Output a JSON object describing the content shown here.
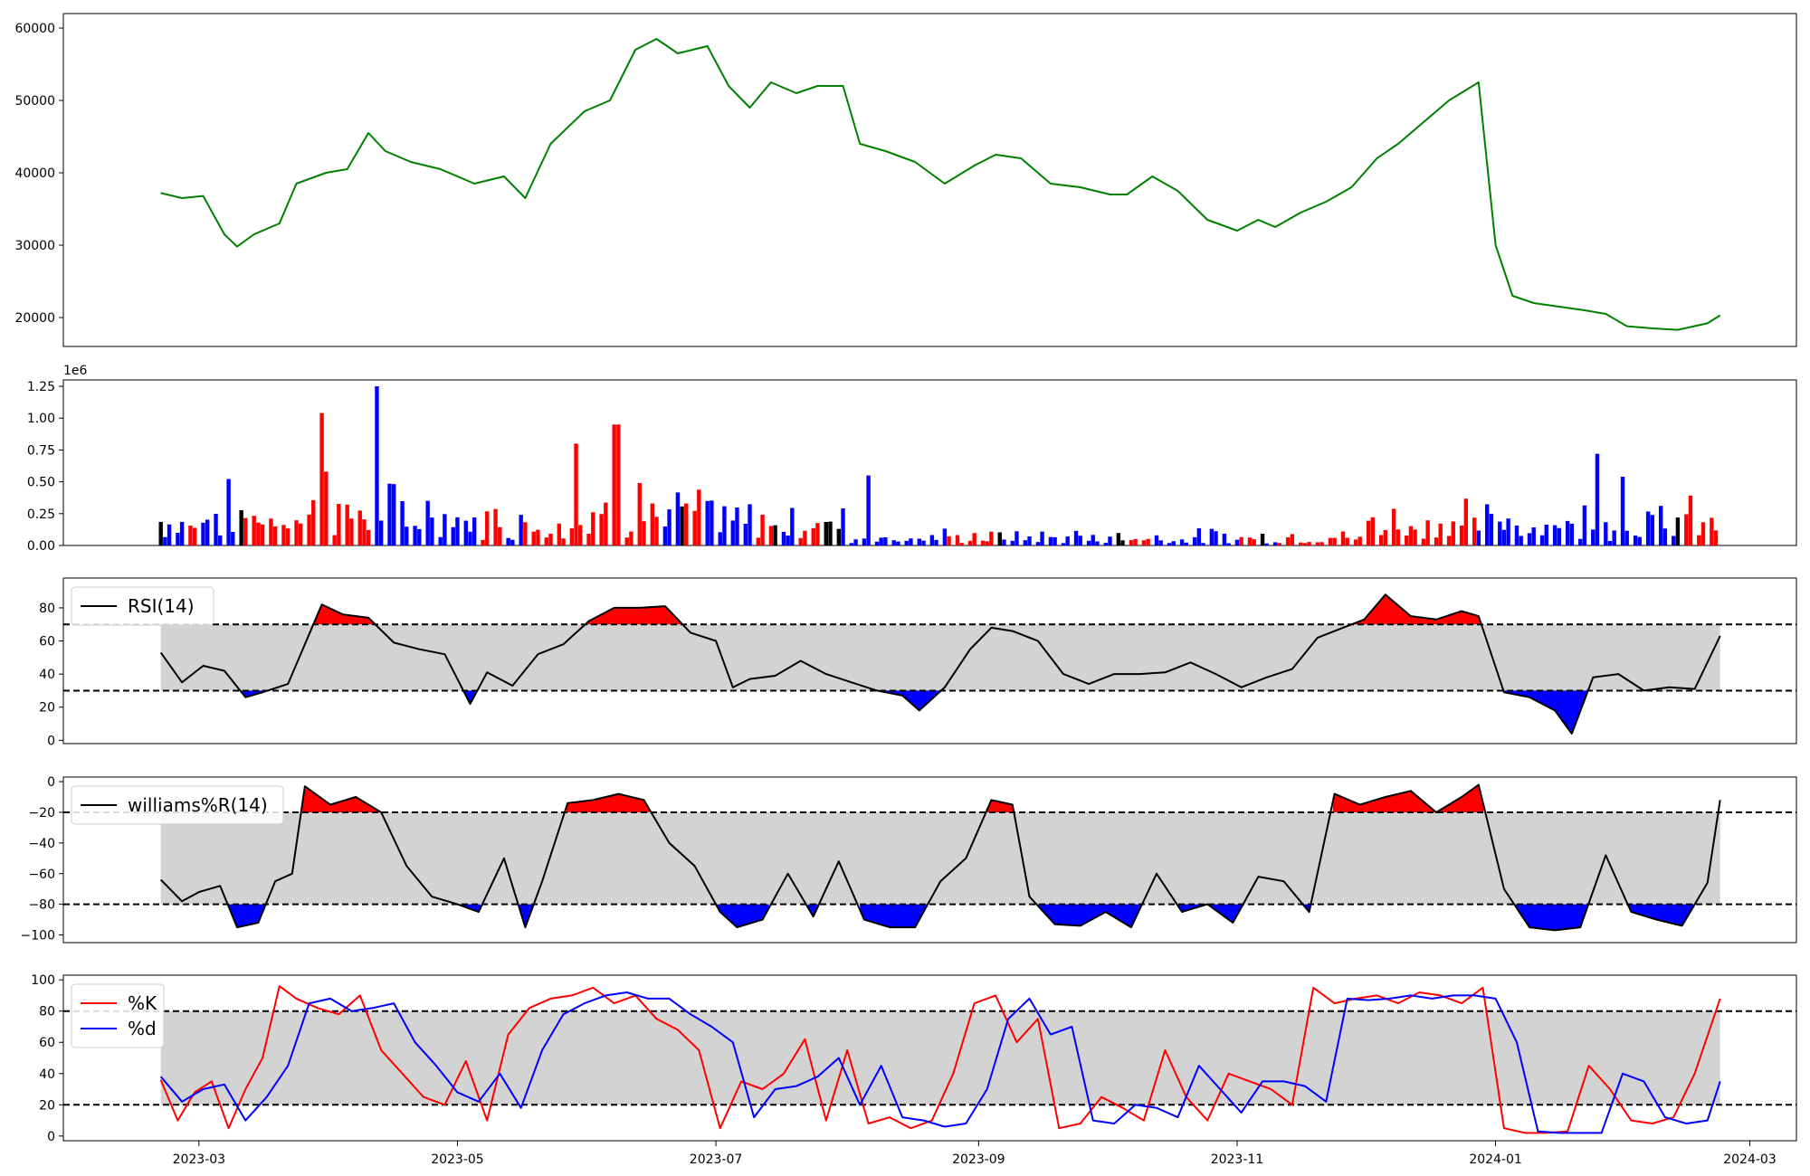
{
  "chart_data": [
    {
      "type": "line",
      "panel": "price",
      "ylim": [
        16000,
        62000
      ],
      "y_ticks": [
        20000,
        30000,
        40000,
        50000,
        60000
      ],
      "colors": {
        "line": "#008000"
      },
      "series": [
        {
          "x": [
            "2023-02-20",
            "2023-02-25",
            "2023-03-02",
            "2023-03-07",
            "2023-03-10",
            "2023-03-14",
            "2023-03-20",
            "2023-03-24",
            "2023-03-31",
            "2023-04-05",
            "2023-04-10",
            "2023-04-14",
            "2023-04-20",
            "2023-04-27",
            "2023-05-05",
            "2023-05-12",
            "2023-05-17",
            "2023-05-23",
            "2023-05-31",
            "2023-06-06",
            "2023-06-12",
            "2023-06-17",
            "2023-06-22",
            "2023-06-29",
            "2023-07-04",
            "2023-07-09",
            "2023-07-14",
            "2023-07-20",
            "2023-07-25",
            "2023-07-31",
            "2023-08-04",
            "2023-08-10",
            "2023-08-17",
            "2023-08-24",
            "2023-08-31",
            "2023-09-05",
            "2023-09-11",
            "2023-09-18",
            "2023-09-25",
            "2023-10-02",
            "2023-10-06",
            "2023-10-12",
            "2023-10-18",
            "2023-10-25",
            "2023-11-01",
            "2023-11-06",
            "2023-11-10",
            "2023-11-16",
            "2023-11-22",
            "2023-11-28",
            "2023-12-04",
            "2023-12-09",
            "2023-12-15",
            "2023-12-21",
            "2023-12-28",
            "2024-01-01",
            "2024-01-05",
            "2024-01-10",
            "2024-01-16",
            "2024-01-22",
            "2024-01-27",
            "2024-02-01",
            "2024-02-07",
            "2024-02-13",
            "2024-02-20",
            "2024-02-23"
          ],
          "values": [
            37200,
            36500,
            36800,
            31500,
            29800,
            31500,
            33000,
            38500,
            40000,
            40500,
            45500,
            43000,
            41500,
            40500,
            38500,
            39500,
            36500,
            44000,
            48500,
            50000,
            57000,
            58500,
            56500,
            57500,
            52000,
            49000,
            52500,
            51000,
            52000,
            52000,
            44000,
            43000,
            41500,
            38500,
            41000,
            42500,
            42000,
            38500,
            38000,
            37000,
            37000,
            39500,
            37500,
            33500,
            32000,
            33500,
            32500,
            34500,
            36000,
            38000,
            42000,
            44000,
            47000,
            50000,
            52500,
            30000,
            23000,
            22000,
            21500,
            21000,
            20500,
            18800,
            18500,
            18300,
            19200,
            20300
          ]
        }
      ]
    },
    {
      "type": "bar",
      "panel": "volume",
      "ylim": [
        0,
        1300000
      ],
      "y_ticks": [
        0,
        250000,
        500000,
        750000,
        1000000,
        1250000
      ],
      "y_tick_labels": [
        "0.00",
        "0.25",
        "0.50",
        "0.75",
        "1.00",
        "1.25"
      ],
      "offset_label": "1e6",
      "colors": {
        "up": "#ff0000",
        "down": "#0000ff",
        "flat": "#000000"
      },
      "bars_description": "daily volume, colored by price direction"
    },
    {
      "type": "line",
      "panel": "rsi",
      "legend": [
        "RSI(14)"
      ],
      "ylim": [
        -2,
        98
      ],
      "y_ticks": [
        0,
        20,
        40,
        60,
        80
      ],
      "thresholds": [
        30,
        70
      ],
      "colors": {
        "line": "#000000",
        "over": "#ff0000",
        "under": "#0000ff",
        "band": "#d3d3d3"
      },
      "series": [
        {
          "name": "RSI(14)",
          "x": [
            "2023-02-20",
            "2023-02-25",
            "2023-03-02",
            "2023-03-07",
            "2023-03-12",
            "2023-03-16",
            "2023-03-22",
            "2023-03-26",
            "2023-03-30",
            "2023-04-04",
            "2023-04-10",
            "2023-04-16",
            "2023-04-22",
            "2023-04-28",
            "2023-05-04",
            "2023-05-08",
            "2023-05-14",
            "2023-05-20",
            "2023-05-26",
            "2023-06-01",
            "2023-06-07",
            "2023-06-13",
            "2023-06-19",
            "2023-06-25",
            "2023-07-01",
            "2023-07-05",
            "2023-07-09",
            "2023-07-15",
            "2023-07-21",
            "2023-07-27",
            "2023-08-02",
            "2023-08-08",
            "2023-08-14",
            "2023-08-18",
            "2023-08-24",
            "2023-08-30",
            "2023-09-04",
            "2023-09-09",
            "2023-09-15",
            "2023-09-21",
            "2023-09-27",
            "2023-10-03",
            "2023-10-09",
            "2023-10-15",
            "2023-10-21",
            "2023-10-27",
            "2023-11-02",
            "2023-11-08",
            "2023-11-14",
            "2023-11-20",
            "2023-11-26",
            "2023-12-01",
            "2023-12-06",
            "2023-12-12",
            "2023-12-18",
            "2023-12-24",
            "2023-12-28",
            "2024-01-03",
            "2024-01-09",
            "2024-01-15",
            "2024-01-19",
            "2024-01-24",
            "2024-01-30",
            "2024-02-05",
            "2024-02-11",
            "2024-02-17",
            "2024-02-23"
          ],
          "values": [
            53,
            35,
            45,
            42,
            26,
            29,
            34,
            58,
            82,
            76,
            74,
            59,
            55,
            52,
            22,
            41,
            33,
            52,
            58,
            72,
            80,
            80,
            81,
            65,
            60,
            32,
            37,
            39,
            48,
            40,
            35,
            30,
            27,
            18,
            32,
            55,
            68,
            66,
            60,
            40,
            34,
            40,
            40,
            41,
            47,
            40,
            32,
            38,
            43,
            62,
            68,
            73,
            88,
            75,
            73,
            78,
            75,
            29,
            26,
            18,
            4,
            38,
            40,
            30,
            32,
            31,
            63
          ]
        }
      ]
    },
    {
      "type": "line",
      "panel": "williams",
      "legend": [
        "williams%R(14)"
      ],
      "ylim": [
        -105,
        3
      ],
      "y_ticks": [
        -100,
        -80,
        -60,
        -40,
        -20,
        0
      ],
      "y_tick_labels": [
        "−100",
        "−80",
        "−60",
        "−40",
        "−20",
        "0"
      ],
      "thresholds": [
        -80,
        -20
      ],
      "colors": {
        "line": "#000000",
        "over": "#ff0000",
        "under": "#0000ff",
        "band": "#d3d3d3"
      },
      "series": [
        {
          "name": "williams%R(14)",
          "x": [
            "2023-02-20",
            "2023-02-25",
            "2023-03-01",
            "2023-03-06",
            "2023-03-10",
            "2023-03-15",
            "2023-03-19",
            "2023-03-23",
            "2023-03-26",
            "2023-04-01",
            "2023-04-07",
            "2023-04-13",
            "2023-04-19",
            "2023-04-25",
            "2023-05-01",
            "2023-05-06",
            "2023-05-12",
            "2023-05-17",
            "2023-05-21",
            "2023-05-27",
            "2023-06-02",
            "2023-06-08",
            "2023-06-14",
            "2023-06-20",
            "2023-06-26",
            "2023-07-02",
            "2023-07-06",
            "2023-07-12",
            "2023-07-18",
            "2023-07-24",
            "2023-07-30",
            "2023-08-05",
            "2023-08-11",
            "2023-08-17",
            "2023-08-23",
            "2023-08-29",
            "2023-09-04",
            "2023-09-09",
            "2023-09-13",
            "2023-09-19",
            "2023-09-25",
            "2023-10-01",
            "2023-10-07",
            "2023-10-13",
            "2023-10-19",
            "2023-10-25",
            "2023-10-31",
            "2023-11-06",
            "2023-11-12",
            "2023-11-18",
            "2023-11-24",
            "2023-11-30",
            "2023-12-06",
            "2023-12-12",
            "2023-12-18",
            "2023-12-24",
            "2023-12-28",
            "2024-01-03",
            "2024-01-09",
            "2024-01-15",
            "2024-01-21",
            "2024-01-27",
            "2024-02-02",
            "2024-02-08",
            "2024-02-14",
            "2024-02-20",
            "2024-02-23"
          ],
          "values": [
            -64,
            -78,
            -72,
            -68,
            -95,
            -92,
            -65,
            -60,
            -3,
            -15,
            -10,
            -20,
            -55,
            -75,
            -80,
            -85,
            -50,
            -95,
            -65,
            -14,
            -12,
            -8,
            -12,
            -40,
            -55,
            -85,
            -95,
            -90,
            -60,
            -88,
            -52,
            -90,
            -95,
            -95,
            -65,
            -50,
            -12,
            -15,
            -75,
            -93,
            -94,
            -85,
            -95,
            -60,
            -85,
            -80,
            -92,
            -62,
            -65,
            -85,
            -8,
            -15,
            -10,
            -6,
            -20,
            -10,
            -2,
            -70,
            -95,
            -97,
            -95,
            -48,
            -85,
            -90,
            -94,
            -66,
            -12
          ]
        }
      ]
    },
    {
      "type": "line",
      "panel": "stochastic",
      "legend": [
        "%K",
        "%d"
      ],
      "ylim": [
        -3,
        103
      ],
      "y_ticks": [
        0,
        20,
        40,
        60,
        80,
        100
      ],
      "thresholds": [
        20,
        80
      ],
      "colors": {
        "%K": "#ff0000",
        "%d": "#0000ff",
        "band": "#d3d3d3"
      },
      "series": [
        {
          "name": "%K",
          "x": [
            "2023-02-20",
            "2023-02-24",
            "2023-02-28",
            "2023-03-04",
            "2023-03-08",
            "2023-03-12",
            "2023-03-16",
            "2023-03-20",
            "2023-03-24",
            "2023-03-29",
            "2023-04-03",
            "2023-04-08",
            "2023-04-13",
            "2023-04-18",
            "2023-04-23",
            "2023-04-28",
            "2023-05-03",
            "2023-05-08",
            "2023-05-13",
            "2023-05-18",
            "2023-05-23",
            "2023-05-28",
            "2023-06-02",
            "2023-06-07",
            "2023-06-12",
            "2023-06-17",
            "2023-06-22",
            "2023-06-27",
            "2023-07-02",
            "2023-07-07",
            "2023-07-12",
            "2023-07-17",
            "2023-07-22",
            "2023-07-27",
            "2023-08-01",
            "2023-08-06",
            "2023-08-11",
            "2023-08-16",
            "2023-08-21",
            "2023-08-26",
            "2023-08-31",
            "2023-09-05",
            "2023-09-10",
            "2023-09-15",
            "2023-09-20",
            "2023-09-25",
            "2023-09-30",
            "2023-10-05",
            "2023-10-10",
            "2023-10-15",
            "2023-10-20",
            "2023-10-25",
            "2023-10-30",
            "2023-11-04",
            "2023-11-09",
            "2023-11-14",
            "2023-11-19",
            "2023-11-24",
            "2023-11-29",
            "2023-12-04",
            "2023-12-09",
            "2023-12-14",
            "2023-12-19",
            "2023-12-24",
            "2023-12-29",
            "2024-01-03",
            "2024-01-08",
            "2024-01-13",
            "2024-01-18",
            "2024-01-23",
            "2024-01-28",
            "2024-02-02",
            "2024-02-07",
            "2024-02-12",
            "2024-02-17",
            "2024-02-23"
          ],
          "values": [
            36,
            10,
            28,
            35,
            5,
            30,
            50,
            96,
            88,
            82,
            78,
            90,
            55,
            40,
            25,
            20,
            48,
            10,
            65,
            82,
            88,
            90,
            95,
            85,
            90,
            75,
            68,
            55,
            5,
            35,
            30,
            40,
            62,
            10,
            55,
            8,
            12,
            5,
            10,
            40,
            85,
            90,
            60,
            75,
            5,
            8,
            25,
            18,
            10,
            55,
            25,
            10,
            40,
            35,
            30,
            20,
            95,
            85,
            88,
            90,
            85,
            92,
            90,
            85,
            95,
            5,
            2,
            2,
            3,
            45,
            30,
            10,
            8,
            12,
            40,
            88
          ]
        },
        {
          "name": "%d",
          "x": [
            "2023-02-20",
            "2023-02-25",
            "2023-03-02",
            "2023-03-07",
            "2023-03-12",
            "2023-03-17",
            "2023-03-22",
            "2023-03-27",
            "2023-04-01",
            "2023-04-06",
            "2023-04-11",
            "2023-04-16",
            "2023-04-21",
            "2023-04-26",
            "2023-05-01",
            "2023-05-06",
            "2023-05-11",
            "2023-05-16",
            "2023-05-21",
            "2023-05-26",
            "2023-05-31",
            "2023-06-05",
            "2023-06-10",
            "2023-06-15",
            "2023-06-20",
            "2023-06-25",
            "2023-06-30",
            "2023-07-05",
            "2023-07-10",
            "2023-07-15",
            "2023-07-20",
            "2023-07-25",
            "2023-07-30",
            "2023-08-04",
            "2023-08-09",
            "2023-08-14",
            "2023-08-19",
            "2023-08-24",
            "2023-08-29",
            "2023-09-03",
            "2023-09-08",
            "2023-09-13",
            "2023-09-18",
            "2023-09-23",
            "2023-09-28",
            "2023-10-03",
            "2023-10-08",
            "2023-10-13",
            "2023-10-18",
            "2023-10-23",
            "2023-10-28",
            "2023-11-02",
            "2023-11-07",
            "2023-11-12",
            "2023-11-17",
            "2023-11-22",
            "2023-11-27",
            "2023-12-02",
            "2023-12-07",
            "2023-12-12",
            "2023-12-17",
            "2023-12-22",
            "2023-12-27",
            "2024-01-01",
            "2024-01-06",
            "2024-01-11",
            "2024-01-16",
            "2024-01-21",
            "2024-01-26",
            "2024-01-31",
            "2024-02-05",
            "2024-02-10",
            "2024-02-15",
            "2024-02-20",
            "2024-02-23"
          ],
          "values": [
            38,
            22,
            30,
            33,
            10,
            25,
            45,
            85,
            88,
            80,
            82,
            85,
            60,
            45,
            28,
            22,
            40,
            18,
            55,
            78,
            85,
            90,
            92,
            88,
            88,
            78,
            70,
            60,
            12,
            30,
            32,
            38,
            50,
            20,
            45,
            12,
            10,
            6,
            8,
            30,
            75,
            88,
            65,
            70,
            10,
            8,
            20,
            18,
            12,
            45,
            30,
            15,
            35,
            35,
            32,
            22,
            88,
            87,
            88,
            90,
            88,
            90,
            90,
            88,
            60,
            3,
            2,
            2,
            2,
            40,
            35,
            12,
            8,
            10,
            35
          ]
        }
      ]
    }
  ],
  "x_axis": {
    "range": [
      "2023-01-28",
      "2024-03-12"
    ],
    "ticks": [
      "2023-03-01",
      "2023-05-01",
      "2023-07-01",
      "2023-09-01",
      "2023-11-01",
      "2024-01-01",
      "2024-03-01"
    ],
    "tick_labels": [
      "2023-03",
      "2023-05",
      "2023-07",
      "2023-09",
      "2023-11",
      "2024-01",
      "2024-03"
    ]
  }
}
